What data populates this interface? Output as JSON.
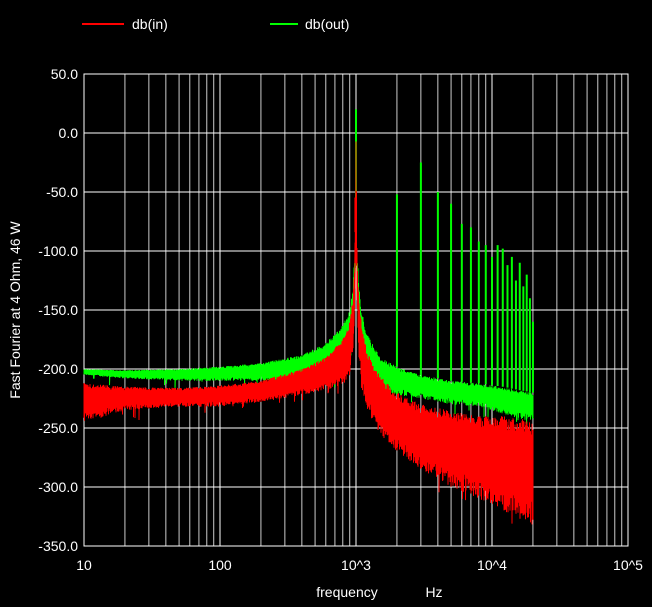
{
  "chart_data": {
    "type": "line",
    "title": "",
    "xlabel": "frequency",
    "xunit": "Hz",
    "ylabel": "Fast Fourier at 4 Ohm, 46 W",
    "xscale": "log",
    "xlim": [
      10,
      100000
    ],
    "ylim": [
      -350,
      50
    ],
    "x_ticks": [
      10,
      100,
      1000,
      10000,
      100000
    ],
    "x_tick_labels": [
      "10",
      "100",
      "10^3",
      "10^4",
      "10^5"
    ],
    "y_ticks": [
      50,
      0,
      -50,
      -100,
      -150,
      -200,
      -250,
      -300,
      -350
    ],
    "y_tick_labels": [
      "50.0",
      "0.0",
      "-50.0",
      "-100.0",
      "-150.0",
      "-200.0",
      "-250.0",
      "-300.0",
      "-350.0"
    ],
    "grid": true,
    "legend_position": "top-left",
    "background": "#000000",
    "series": [
      {
        "name": "db(in)",
        "color": "#ff0000",
        "envelope": {
          "x": [
            10,
            20,
            50,
            100,
            200,
            400,
            600,
            800,
            900,
            950,
            980,
            1000,
            1020,
            1050,
            1100,
            1200,
            1500,
            2000,
            3000,
            5000,
            8000,
            12000,
            16000,
            20000
          ],
          "y_upper": [
            -212,
            -215,
            -216,
            -214,
            -210,
            -200,
            -190,
            -175,
            -160,
            -140,
            -110,
            0,
            -110,
            -140,
            -160,
            -185,
            -205,
            -220,
            -230,
            -235,
            -240,
            -240,
            -242,
            -245
          ],
          "y_lower": [
            -245,
            -235,
            -232,
            -232,
            -228,
            -222,
            -218,
            -214,
            -205,
            -185,
            -150,
            -100,
            -150,
            -190,
            -215,
            -235,
            -255,
            -270,
            -285,
            -300,
            -310,
            -320,
            -328,
            -335
          ]
        },
        "peaks": [
          {
            "x": 1000,
            "y": 0
          },
          {
            "x": 990,
            "y": -84
          }
        ]
      },
      {
        "name": "db(out)",
        "color": "#00ff00",
        "envelope": {
          "x": [
            10,
            20,
            50,
            100,
            200,
            400,
            600,
            800,
            900,
            950,
            980,
            1000,
            1020,
            1050,
            1100,
            1200,
            1500,
            2000,
            3000,
            5000,
            8000,
            12000,
            16000,
            20000
          ],
          "y_upper": [
            -200,
            -201,
            -200,
            -198,
            -195,
            -188,
            -178,
            -163,
            -150,
            -130,
            -100,
            -90,
            -100,
            -130,
            -150,
            -170,
            -190,
            -198,
            -205,
            -210,
            -212,
            -215,
            -218,
            -220
          ],
          "y_lower": [
            -205,
            -208,
            -210,
            -210,
            -210,
            -210,
            -208,
            -203,
            -195,
            -180,
            -140,
            -100,
            -140,
            -180,
            -200,
            -212,
            -218,
            -222,
            -225,
            -230,
            -232,
            -238,
            -242,
            -245
          ]
        },
        "peaks": [
          {
            "x": 1000,
            "y": 20
          },
          {
            "x": 2000,
            "y": -52
          },
          {
            "x": 3000,
            "y": -25
          },
          {
            "x": 4000,
            "y": -50
          },
          {
            "x": 5000,
            "y": -60
          },
          {
            "x": 6000,
            "y": -77
          },
          {
            "x": 7000,
            "y": -80
          },
          {
            "x": 8000,
            "y": -92
          },
          {
            "x": 9000,
            "y": -95
          },
          {
            "x": 10000,
            "y": -105
          },
          {
            "x": 11000,
            "y": -95
          },
          {
            "x": 12000,
            "y": -98
          },
          {
            "x": 13000,
            "y": -112
          },
          {
            "x": 14000,
            "y": -105
          },
          {
            "x": 15000,
            "y": -125
          },
          {
            "x": 16000,
            "y": -110
          },
          {
            "x": 17000,
            "y": -130
          },
          {
            "x": 18000,
            "y": -120
          },
          {
            "x": 19000,
            "y": -140
          },
          {
            "x": 20000,
            "y": -160
          }
        ]
      }
    ]
  }
}
